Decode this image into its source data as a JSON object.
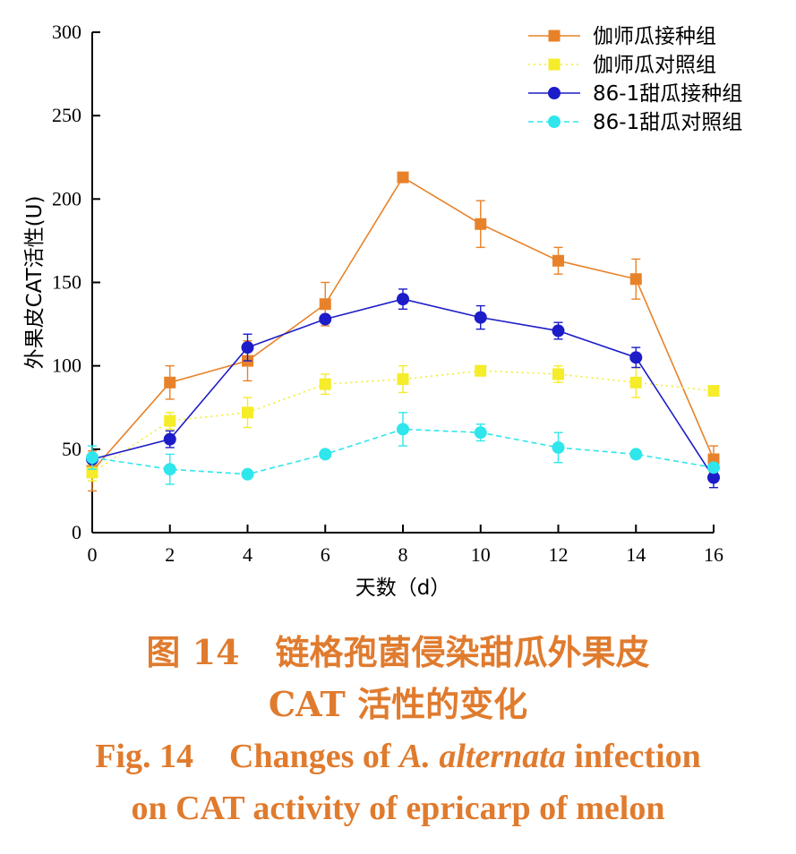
{
  "chart_data": {
    "type": "line",
    "title": "",
    "xlabel": "天数（d）",
    "ylabel": "外果皮CAT活性(U)",
    "xlim": [
      0,
      16
    ],
    "ylim": [
      0,
      300
    ],
    "xticks": [
      0,
      2,
      4,
      6,
      8,
      10,
      12,
      14,
      16
    ],
    "yticks": [
      0,
      50,
      100,
      150,
      200,
      250,
      300
    ],
    "x": [
      0,
      2,
      4,
      6,
      8,
      10,
      12,
      14,
      16
    ],
    "legend_position": "top-right",
    "grid": false,
    "series": [
      {
        "name": "伽师瓜接种组",
        "color": "#E8822A",
        "marker": "square",
        "line": "solid",
        "values": [
          37,
          90,
          103,
          137,
          213,
          185,
          163,
          152,
          44
        ],
        "errors": [
          12,
          10,
          12,
          13,
          0,
          14,
          8,
          12,
          8
        ]
      },
      {
        "name": "伽师瓜对照组",
        "color": "#F5EC2A",
        "marker": "square",
        "line": "dotted",
        "values": [
          36,
          67,
          72,
          89,
          92,
          97,
          95,
          90,
          85
        ],
        "errors": [
          5,
          5,
          9,
          6,
          8,
          0,
          5,
          9,
          0
        ]
      },
      {
        "name": "86-1甜瓜接种组",
        "color": "#1C1CC8",
        "marker": "circle",
        "line": "solid",
        "values": [
          44,
          56,
          111,
          128,
          140,
          129,
          121,
          105,
          33
        ],
        "errors": [
          0,
          5,
          8,
          0,
          6,
          7,
          5,
          6,
          6
        ]
      },
      {
        "name": "86-1甜瓜对照组",
        "color": "#2EE6EC",
        "marker": "circle",
        "line": "dashed",
        "values": [
          45,
          38,
          35,
          47,
          62,
          60,
          51,
          47,
          39
        ],
        "errors": [
          7,
          9,
          0,
          0,
          10,
          5,
          9,
          0,
          0
        ]
      }
    ]
  },
  "caption": {
    "cn_line1_fig": "图 14",
    "cn_line1_text": "链格孢菌侵染甜瓜外果皮",
    "cn_line2": "CAT 活性的变化",
    "en_line1_fig": "Fig. 14",
    "en_line1_pre": "Changes of ",
    "en_line1_species": "A. alternata",
    "en_line1_post": " infection",
    "en_line2": "on CAT activity of epricarp of melon"
  },
  "colors": {
    "caption": "#E07B2E"
  }
}
